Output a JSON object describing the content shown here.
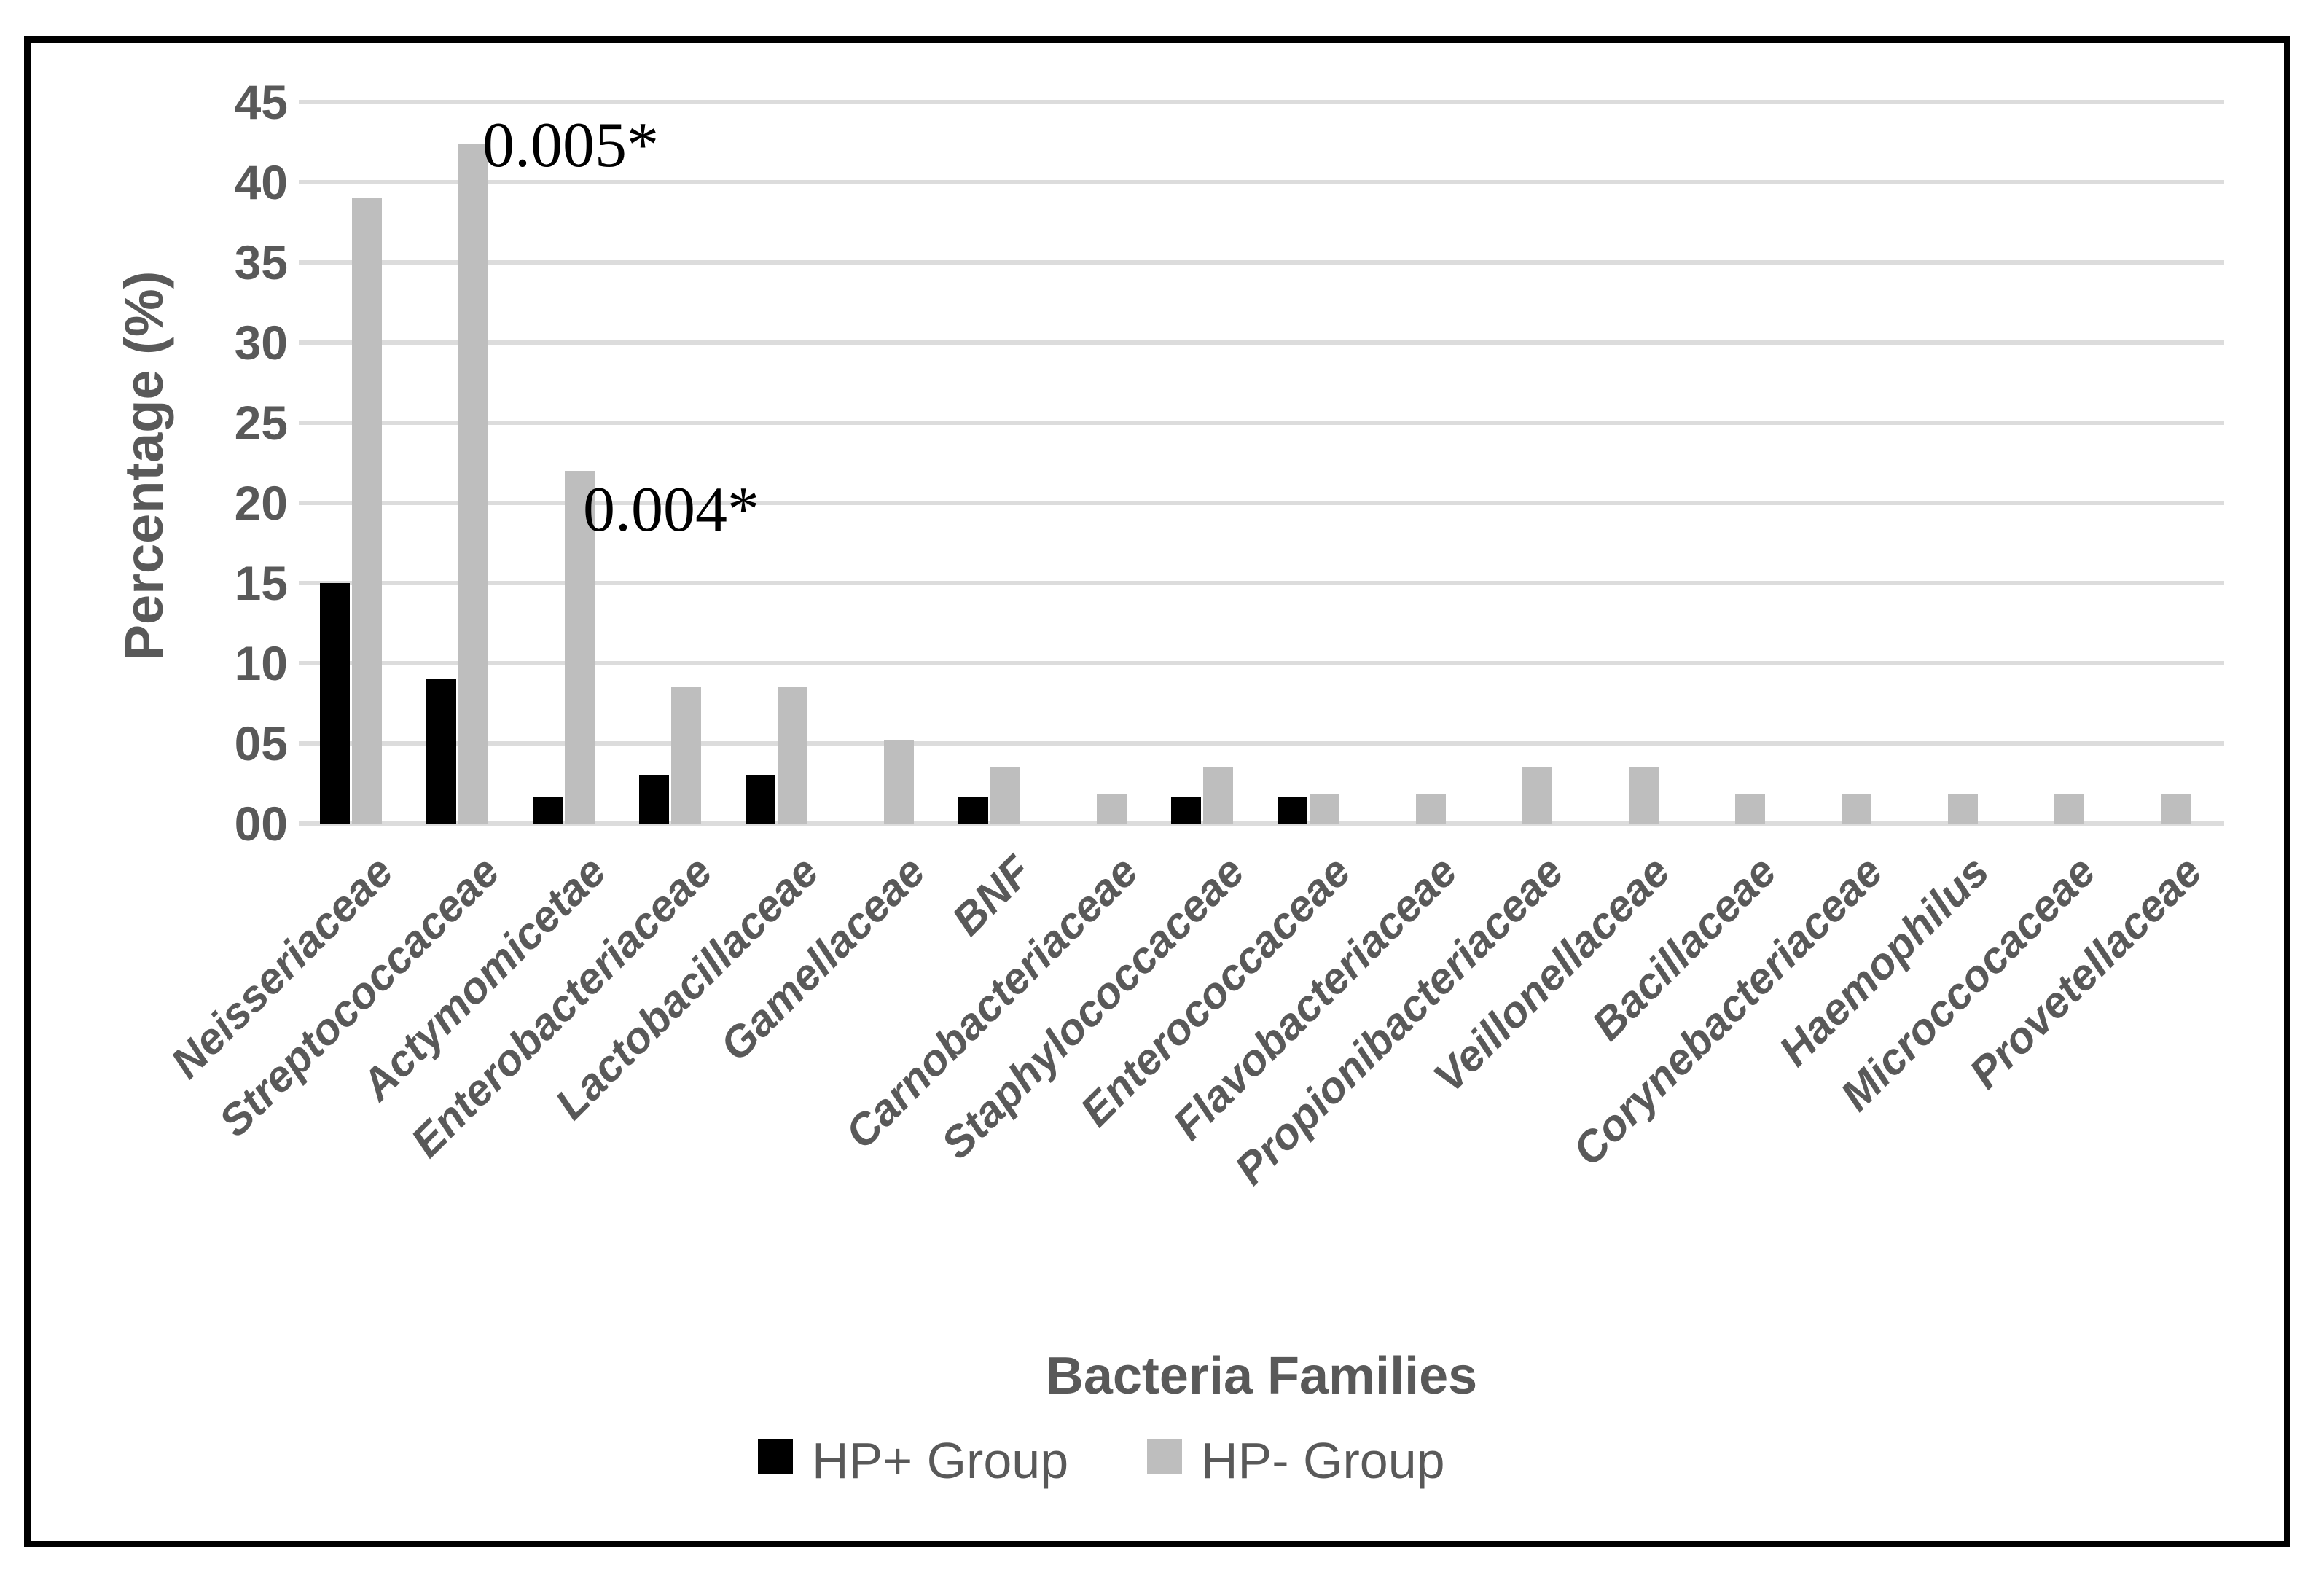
{
  "figure": {
    "y_axis_title": "Percentage (%)",
    "x_axis_title": "Bacteria Families",
    "legend": [
      {
        "label": "HP+ Group",
        "color": "#000000"
      },
      {
        "label": "HP- Group",
        "color": "#bebebe"
      }
    ]
  },
  "chart_data": {
    "type": "bar",
    "title": "",
    "xlabel": "Bacteria Families",
    "ylabel": "Percentage (%)",
    "ylim": [
      0,
      45
    ],
    "y_ticks": [
      "00",
      "05",
      "10",
      "15",
      "20",
      "25",
      "30",
      "35",
      "40",
      "45"
    ],
    "grid": true,
    "legend_position": "bottom",
    "colors": {
      "hp_plus": "#000000",
      "hp_minus": "#bebebe",
      "gridline": "#dcdcdc",
      "axis_text": "#595959",
      "annotation_text": "#000000"
    },
    "categories": [
      "Neisseriaceae",
      "Streptococcaceae",
      "Actymomicetae",
      "Enterobacteriaceae",
      "Lactobacillaceae",
      "Gamellaceae",
      "BNF",
      "Carnobacteriaceae",
      "Staphylococcaceae",
      "Enterococcaceae",
      "Flavobacteriaceae",
      "Propionibacteriaceae",
      "Veillonellaceae",
      "Bacillaceae",
      "Corynebacteriaceae",
      "Haemophilus",
      "Microccocaceae",
      "Provetellaceae"
    ],
    "series": [
      {
        "name": "HP+ Group",
        "color": "#000000",
        "values": [
          15,
          9,
          1.7,
          3,
          3,
          0,
          1.7,
          0,
          1.7,
          1.7,
          0,
          0,
          0,
          0,
          0,
          0,
          0,
          0
        ]
      },
      {
        "name": "HP- Group",
        "color": "#bebebe",
        "values": [
          39,
          42.4,
          22,
          8.5,
          8.5,
          5.2,
          3.5,
          1.8,
          3.5,
          1.8,
          1.8,
          3.5,
          3.5,
          1.8,
          1.8,
          1.8,
          1.8,
          1.8
        ]
      }
    ],
    "annotations": [
      {
        "text": "0.005*",
        "category": "Streptococcaceae",
        "series": "HP- Group"
      },
      {
        "text": "0.004*",
        "category": "Actymomicetae",
        "series": "HP- Group"
      }
    ]
  }
}
